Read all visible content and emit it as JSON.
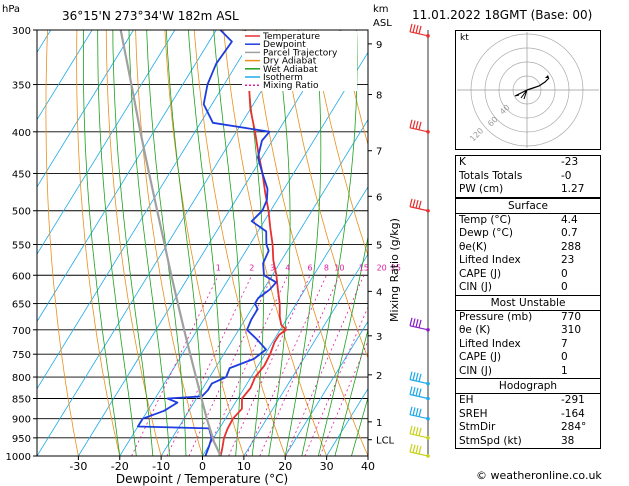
{
  "header": {
    "hpa": "hPa",
    "location": "36°15'N  273°34'W  182m  ASL",
    "km": "km",
    "asl": "ASL",
    "datetime": "11.01.2022  18GMT  (Base: 00)"
  },
  "chart_data": {
    "type": "line",
    "xlabel": "Dewpoint / Temperature (°C)",
    "mixing_ratio_label": "Mixing Ratio (g/kg)",
    "xlim": [
      -40,
      40
    ],
    "ylim_hpa": [
      1000,
      300
    ],
    "xticks": [
      "-30",
      "-20",
      "-10",
      "0",
      "10",
      "20",
      "30",
      "40"
    ],
    "pressure_levels": [
      "300",
      "350",
      "400",
      "450",
      "500",
      "550",
      "600",
      "650",
      "700",
      "750",
      "800",
      "850",
      "900",
      "950",
      "1000"
    ],
    "km_ticks": [
      {
        "label": "9",
        "p": 312
      },
      {
        "label": "8",
        "p": 360
      },
      {
        "label": "7",
        "p": 422
      },
      {
        "label": "6",
        "p": 480
      },
      {
        "label": "5",
        "p": 550
      },
      {
        "label": "4",
        "p": 628
      },
      {
        "label": "3",
        "p": 712
      },
      {
        "label": "2",
        "p": 795
      },
      {
        "label": "1",
        "p": 908
      },
      {
        "label": "LCL",
        "p": 955
      }
    ],
    "mixing_ratio_labels": [
      "1",
      "2",
      "3",
      "4",
      "6",
      "8",
      "10",
      "15",
      "20",
      "25"
    ],
    "legend": [
      {
        "name": "Temperature",
        "color": "#e83030"
      },
      {
        "name": "Dewpoint",
        "color": "#1e3ce0"
      },
      {
        "name": "Parcel Trajectory",
        "color": "#a0a0a0"
      },
      {
        "name": "Dry Adiabat",
        "color": "#e8901e"
      },
      {
        "name": "Wet Adiabat",
        "color": "#1ea01e"
      },
      {
        "name": "Isotherm",
        "color": "#1eaae8"
      },
      {
        "name": "Mixing Ratio",
        "color": "#e01ea0"
      }
    ],
    "series": [
      {
        "name": "Temperature",
        "color": "#e83030",
        "points": [
          [
            1000,
            4.4
          ],
          [
            975,
            3.5
          ],
          [
            950,
            2.5
          ],
          [
            925,
            2.0
          ],
          [
            900,
            1.8
          ],
          [
            875,
            2.5
          ],
          [
            850,
            1.0
          ],
          [
            825,
            1.5
          ],
          [
            800,
            1.0
          ],
          [
            775,
            1.5
          ],
          [
            750,
            1.2
          ],
          [
            725,
            0.5
          ],
          [
            710,
            0.5
          ],
          [
            700,
            1.5
          ],
          [
            690,
            -0.5
          ],
          [
            675,
            -2.0
          ],
          [
            650,
            -4.0
          ],
          [
            625,
            -6.5
          ],
          [
            600,
            -9.0
          ],
          [
            575,
            -12.0
          ],
          [
            550,
            -14.5
          ],
          [
            525,
            -17.5
          ],
          [
            500,
            -20.5
          ],
          [
            475,
            -24.0
          ],
          [
            450,
            -27.5
          ],
          [
            425,
            -31.5
          ],
          [
            400,
            -35.5
          ],
          [
            375,
            -40.0
          ],
          [
            350,
            -44.0
          ],
          [
            325,
            -48.5
          ],
          [
            300,
            -53.0
          ]
        ]
      },
      {
        "name": "Dewpoint",
        "color": "#1e3ce0",
        "points": [
          [
            1000,
            0.7
          ],
          [
            975,
            0.2
          ],
          [
            950,
            -0.5
          ],
          [
            925,
            -2.5
          ],
          [
            920,
            -20.0
          ],
          [
            900,
            -20.0
          ],
          [
            880,
            -16.0
          ],
          [
            860,
            -14.0
          ],
          [
            850,
            -17.0
          ],
          [
            845,
            -9.0
          ],
          [
            830,
            -8.5
          ],
          [
            815,
            -8.5
          ],
          [
            800,
            -6.0
          ],
          [
            780,
            -6.5
          ],
          [
            760,
            -2.0
          ],
          [
            740,
            -0.5
          ],
          [
            720,
            -4.0
          ],
          [
            700,
            -8.0
          ],
          [
            680,
            -8.5
          ],
          [
            660,
            -8.5
          ],
          [
            650,
            -10.0
          ],
          [
            640,
            -10.0
          ],
          [
            625,
            -8.5
          ],
          [
            612,
            -8.0
          ],
          [
            600,
            -12.0
          ],
          [
            580,
            -14.0
          ],
          [
            560,
            -14.5
          ],
          [
            550,
            -16.0
          ],
          [
            530,
            -18.0
          ],
          [
            515,
            -23.0
          ],
          [
            500,
            -22.0
          ],
          [
            485,
            -22.5
          ],
          [
            470,
            -24.0
          ],
          [
            450,
            -27.5
          ],
          [
            430,
            -31.0
          ],
          [
            410,
            -32.5
          ],
          [
            400,
            -32.0
          ],
          [
            390,
            -47.0
          ],
          [
            370,
            -52.0
          ],
          [
            350,
            -54.0
          ],
          [
            330,
            -55.0
          ],
          [
            310,
            -54.5
          ],
          [
            300,
            -59.0
          ]
        ]
      },
      {
        "name": "Parcel Trajectory",
        "color": "#a0a0a0",
        "points": [
          [
            1000,
            4.4
          ],
          [
            960,
            0.6
          ],
          [
            900,
            -4.5
          ],
          [
            850,
            -8.8
          ],
          [
            800,
            -13.3
          ],
          [
            750,
            -18.1
          ],
          [
            700,
            -23.2
          ],
          [
            650,
            -28.6
          ],
          [
            600,
            -34.4
          ],
          [
            550,
            -40.6
          ],
          [
            500,
            -47.4
          ],
          [
            450,
            -54.9
          ],
          [
            400,
            -63.2
          ],
          [
            350,
            -72.4
          ],
          [
            300,
            -83.1
          ]
        ]
      }
    ]
  },
  "hodograph": {
    "label": "kt",
    "rings": [
      "40",
      "60",
      "120"
    ]
  },
  "indices": [
    {
      "label": "K",
      "value": "-23"
    },
    {
      "label": "Totals Totals",
      "value": "-0"
    },
    {
      "label": "PW (cm)",
      "value": "1.27"
    }
  ],
  "surface": {
    "title": "Surface",
    "rows": [
      {
        "label": "Temp (°C)",
        "value": "4.4"
      },
      {
        "label": "Dewp (°C)",
        "value": "0.7"
      },
      {
        "label": "θe(K)",
        "value": "288"
      },
      {
        "label": "Lifted Index",
        "value": "23"
      },
      {
        "label": "CAPE (J)",
        "value": "0"
      },
      {
        "label": "CIN (J)",
        "value": "0"
      }
    ]
  },
  "most_unstable": {
    "title": "Most Unstable",
    "rows": [
      {
        "label": "Pressure (mb)",
        "value": "770"
      },
      {
        "label": "θe (K)",
        "value": "310"
      },
      {
        "label": "Lifted Index",
        "value": "7"
      },
      {
        "label": "CAPE (J)",
        "value": "0"
      },
      {
        "label": "CIN (J)",
        "value": "1"
      }
    ]
  },
  "hodograph_table": {
    "title": "Hodograph",
    "rows": [
      {
        "label": "EH",
        "value": "-291"
      },
      {
        "label": "SREH",
        "value": "-164"
      },
      {
        "label": "StmDir",
        "value": "284°"
      },
      {
        "label": "StmSpd (kt)",
        "value": "38"
      }
    ]
  },
  "footer": {
    "credit": "© weatheronline.co.uk"
  },
  "colors": {
    "temperature": "#e83030",
    "dewpoint": "#1e3ce0",
    "parcel": "#a0a0a0",
    "dry": "#e8901e",
    "wet": "#1ea01e",
    "isotherm": "#1eaae8",
    "mixing": "#e01ea0"
  }
}
